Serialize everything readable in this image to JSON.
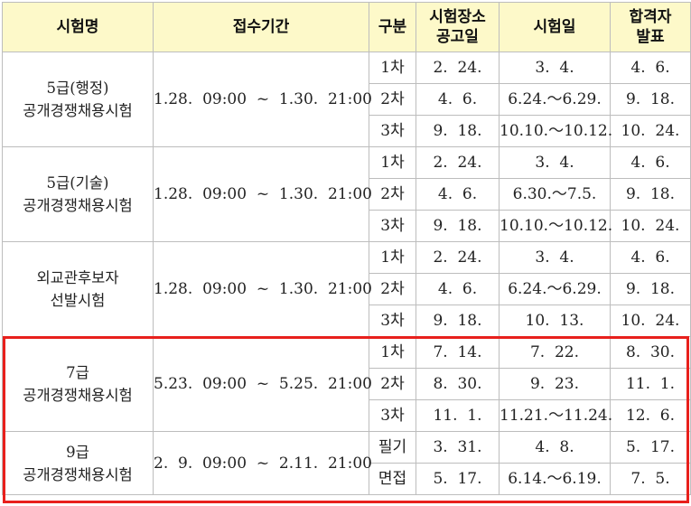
{
  "headers": {
    "exam": "시험명",
    "period": "접수기간",
    "stage": "구분",
    "venue_l1": "시험장소",
    "venue_l2": "공고일",
    "date": "시험일",
    "result_l1": "합격자",
    "result_l2": "발표"
  },
  "exams": [
    {
      "name_l1": "5급(행정)",
      "name_l2": "공개경쟁채용시험",
      "period": "1.28.  09:00  ~  1.30.  21:00",
      "rows": [
        {
          "stage": "1차",
          "venue": "2.  24.",
          "date": "3.  4.",
          "result": "4.  6."
        },
        {
          "stage": "2차",
          "venue": "4.  6.",
          "date": "6.24.～6.29.",
          "result": "9.  18."
        },
        {
          "stage": "3차",
          "venue": "9.  18.",
          "date": "10.10.～10.12.",
          "result": "10.  24."
        }
      ]
    },
    {
      "name_l1": "5급(기술)",
      "name_l2": "공개경쟁채용시험",
      "period": "1.28.  09:00  ~  1.30.  21:00",
      "rows": [
        {
          "stage": "1차",
          "venue": "2.  24.",
          "date": "3.  4.",
          "result": "4.  6."
        },
        {
          "stage": "2차",
          "venue": "4.  6.",
          "date": "6.30.～7.5.",
          "result": "9.  18."
        },
        {
          "stage": "3차",
          "venue": "9.  18.",
          "date": "10.10.～10.12.",
          "result": "10.  24."
        }
      ]
    },
    {
      "name_l1": "외교관후보자",
      "name_l2": "선발시험",
      "period": "1.28.  09:00  ~  1.30.  21:00",
      "rows": [
        {
          "stage": "1차",
          "venue": "2.  24.",
          "date": "3.  4.",
          "result": "4.  6."
        },
        {
          "stage": "2차",
          "venue": "4.  6.",
          "date": "6.24.～6.29.",
          "result": "9.  18."
        },
        {
          "stage": "3차",
          "venue": "9.  18.",
          "date": "10.  13.",
          "result": "10.  24."
        }
      ]
    },
    {
      "name_l1": "7급",
      "name_l2": "공개경쟁채용시험",
      "period": "5.23.  09:00  ~  5.25.  21:00",
      "rows": [
        {
          "stage": "1차",
          "venue": "7.  14.",
          "date": "7.  22.",
          "result": "8.  30."
        },
        {
          "stage": "2차",
          "venue": "8.  30.",
          "date": "9.  23.",
          "result": "11.  1."
        },
        {
          "stage": "3차",
          "venue": "11.  1.",
          "date": "11.21.～11.24.",
          "result": "12.  6."
        }
      ]
    },
    {
      "name_l1": "9급",
      "name_l2": "공개경쟁채용시험",
      "period": "2.  9.  09:00  ~  2.11.  21:00",
      "rows": [
        {
          "stage": "필기",
          "venue": "3.  31.",
          "date": "4.  8.",
          "result": "5.  17."
        },
        {
          "stage": "면접",
          "venue": "5.  17.",
          "date": "6.14.～6.19.",
          "result": "7.  5."
        }
      ]
    }
  ],
  "highlight_color": "#e8201c",
  "header_bg": "#fdf9c9"
}
